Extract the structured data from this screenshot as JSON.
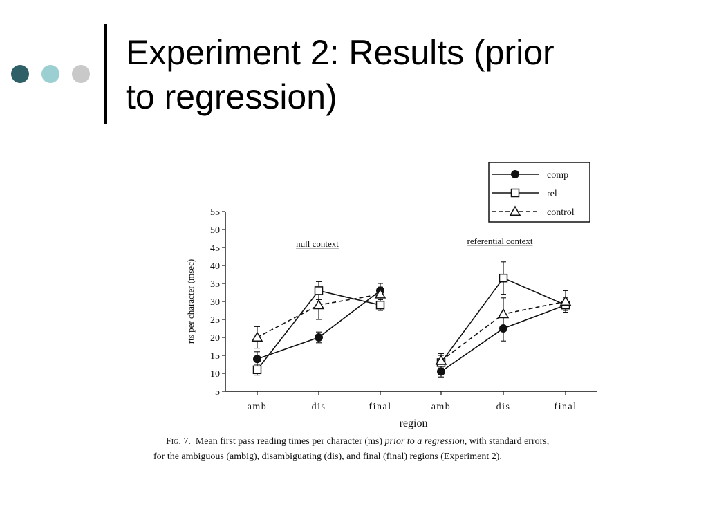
{
  "slide": {
    "title_line1": "Experiment 2: Results (prior",
    "title_line2": "to regression)"
  },
  "colors": {
    "dot1": "#2f6068",
    "dot2": "#9ccfd1",
    "dot3": "#c9c9c9",
    "ink": "#111111"
  },
  "figure": {
    "caption": {
      "fig_label": "Fig. 7.",
      "text_a": "Mean first pass reading times per character (ms) ",
      "text_italic": "prior to a regression",
      "text_b": ", with standard errors,",
      "line2": "for the ambiguous (ambig), disambiguating (dis), and final (final) regions (Experiment 2)."
    }
  },
  "chart_data": {
    "type": "line",
    "ylabel": "rts per character (msec)",
    "xlabel": "region",
    "ylim": [
      5,
      55
    ],
    "yticks": [
      5,
      10,
      15,
      20,
      25,
      30,
      35,
      40,
      45,
      50,
      55
    ],
    "legend_position": "top-right",
    "legend": [
      {
        "label": "comp",
        "marker": "filled-circle",
        "dash": "solid"
      },
      {
        "label": "rel",
        "marker": "open-square",
        "dash": "solid"
      },
      {
        "label": "control",
        "marker": "open-triangle",
        "dash": "dashed"
      }
    ],
    "panels": [
      {
        "title": "null context",
        "categories": [
          "amb",
          "dis",
          "final"
        ],
        "series": [
          {
            "name": "comp",
            "values": [
              14,
              20,
              33
            ],
            "errors": [
              2,
              1.5,
              2
            ]
          },
          {
            "name": "rel",
            "values": [
              11,
              33,
              29
            ],
            "errors": [
              1.5,
              2.5,
              1.5
            ]
          },
          {
            "name": "control",
            "values": [
              20,
              29,
              32
            ],
            "errors": [
              3,
              4,
              2
            ]
          }
        ]
      },
      {
        "title": "referential context",
        "categories": [
          "amb",
          "dis",
          "final"
        ],
        "series": [
          {
            "name": "comp",
            "values": [
              10.5,
              22.5,
              29
            ],
            "errors": [
              1.5,
              3.5,
              2
            ]
          },
          {
            "name": "rel",
            "values": [
              13,
              36.5,
              29
            ],
            "errors": [
              2,
              4.5,
              1.5
            ]
          },
          {
            "name": "control",
            "values": [
              13.5,
              26.5,
              30
            ],
            "errors": [
              2,
              4.5,
              3
            ]
          }
        ]
      }
    ]
  }
}
